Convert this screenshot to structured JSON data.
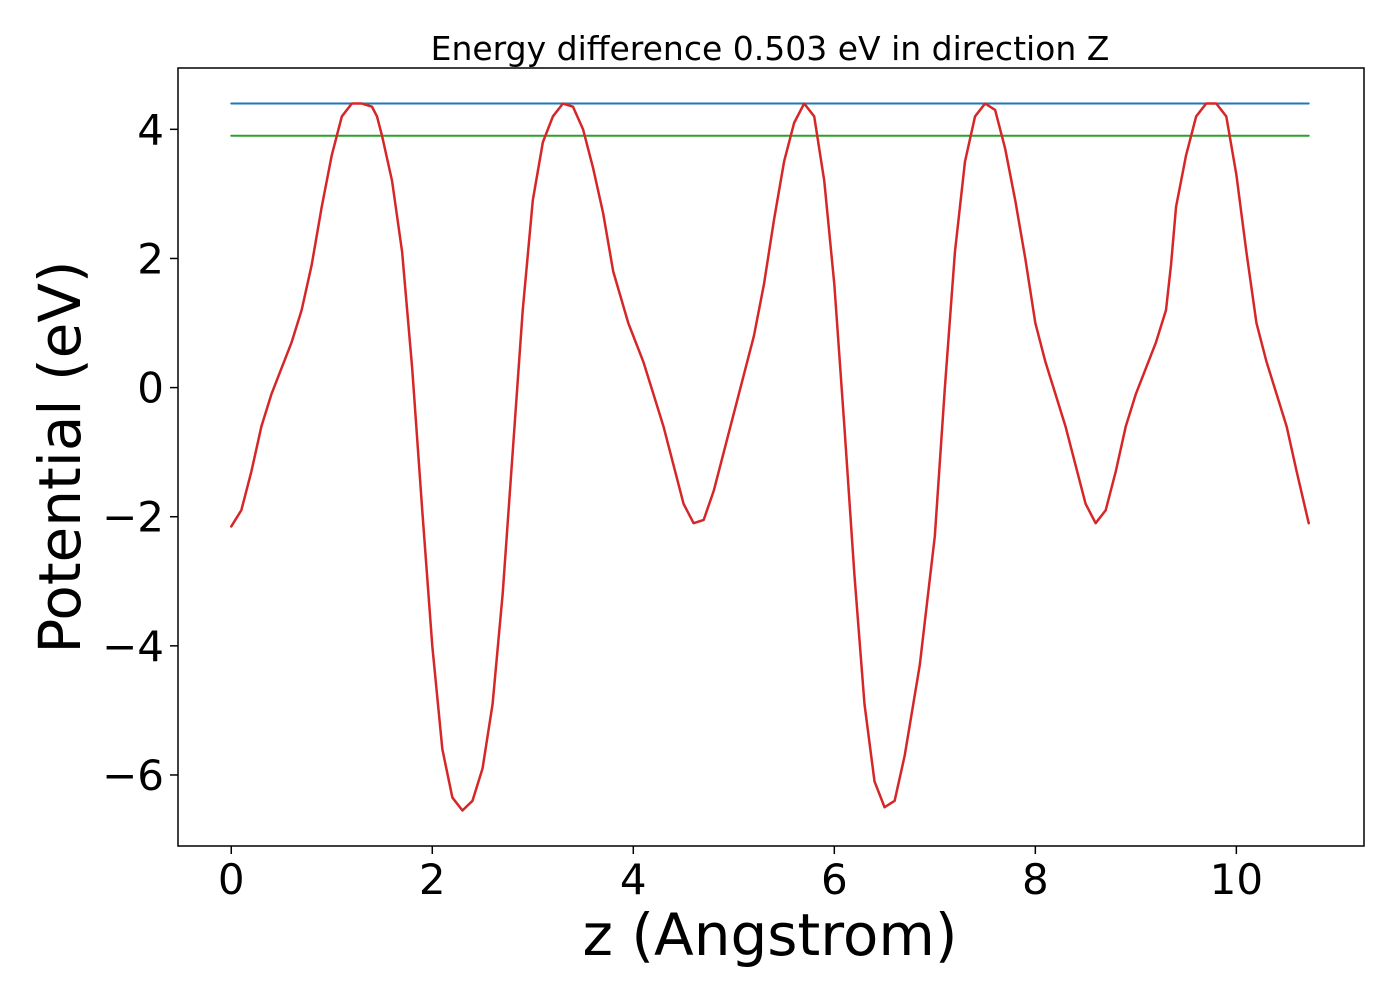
{
  "chart_data": {
    "type": "line",
    "title": "Energy difference 0.503 eV in direction Z",
    "xlabel": "z (Angstrom)",
    "ylabel": "Potential (eV)",
    "xlim": [
      -0.53,
      11.27
    ],
    "ylim": [
      -7.1,
      4.95
    ],
    "xticks": [
      0,
      2,
      4,
      6,
      8,
      10
    ],
    "xtick_labels": [
      "0",
      "2",
      "4",
      "6",
      "8",
      "10"
    ],
    "yticks": [
      -6,
      -4,
      -2,
      0,
      2,
      4
    ],
    "ytick_labels": [
      "−6",
      "−4",
      "−2",
      "0",
      "2",
      "4"
    ],
    "grid": false,
    "legend": "none",
    "series": [
      {
        "color": "#1f77b4",
        "x": [
          0,
          10.72
        ],
        "y": [
          4.4,
          4.4
        ]
      },
      {
        "color": "#2ca02c",
        "x": [
          0,
          10.72
        ],
        "y": [
          3.9,
          3.9
        ]
      },
      {
        "color": "#d62728",
        "x": [
          0,
          0.1,
          0.2,
          0.3,
          0.4,
          0.5,
          0.6,
          0.7,
          0.8,
          0.9,
          1.0,
          1.1,
          1.2,
          1.3,
          1.4,
          1.45,
          1.5,
          1.6,
          1.7,
          1.8,
          1.9,
          2.0,
          2.1,
          2.2,
          2.3,
          2.4,
          2.5,
          2.6,
          2.7,
          2.8,
          2.9,
          3.0,
          3.1,
          3.2,
          3.3,
          3.4,
          3.5,
          3.6,
          3.7,
          3.8,
          3.95,
          4.1,
          4.2,
          4.3,
          4.4,
          4.5,
          4.6,
          4.7,
          4.8,
          4.9,
          5.0,
          5.1,
          5.2,
          5.3,
          5.4,
          5.5,
          5.6,
          5.7,
          5.8,
          5.9,
          6.0,
          6.1,
          6.2,
          6.3,
          6.4,
          6.5,
          6.6,
          6.7,
          6.85,
          7.0,
          7.1,
          7.2,
          7.3,
          7.4,
          7.5,
          7.6,
          7.7,
          7.8,
          7.9,
          8.0,
          8.1,
          8.2,
          8.3,
          8.4,
          8.5,
          8.6,
          8.7,
          8.8,
          8.9,
          9.0,
          9.1,
          9.2,
          9.3,
          9.35,
          9.4,
          9.5,
          9.6,
          9.7,
          9.8,
          9.9,
          10.0,
          10.1,
          10.2,
          10.3,
          10.4,
          10.5,
          10.6,
          10.72
        ],
        "y": [
          -2.15,
          -1.9,
          -1.3,
          -0.6,
          -0.1,
          0.3,
          0.7,
          1.2,
          1.9,
          2.8,
          3.6,
          4.2,
          4.4,
          4.4,
          4.35,
          4.2,
          3.9,
          3.2,
          2.1,
          0.3,
          -1.9,
          -4.0,
          -5.6,
          -6.35,
          -6.55,
          -6.4,
          -5.9,
          -4.9,
          -3.2,
          -1.0,
          1.2,
          2.9,
          3.8,
          4.2,
          4.4,
          4.35,
          4.0,
          3.4,
          2.7,
          1.8,
          1.0,
          0.4,
          -0.1,
          -0.6,
          -1.2,
          -1.8,
          -2.1,
          -2.05,
          -1.6,
          -1.0,
          -0.4,
          0.2,
          0.8,
          1.6,
          2.6,
          3.5,
          4.1,
          4.4,
          4.2,
          3.2,
          1.6,
          -0.6,
          -2.9,
          -4.9,
          -6.1,
          -6.5,
          -6.4,
          -5.7,
          -4.3,
          -2.3,
          0.0,
          2.1,
          3.5,
          4.2,
          4.4,
          4.3,
          3.7,
          2.9,
          2.0,
          1.0,
          0.4,
          -0.1,
          -0.6,
          -1.2,
          -1.8,
          -2.1,
          -1.9,
          -1.3,
          -0.6,
          -0.1,
          0.3,
          0.7,
          1.2,
          1.9,
          2.8,
          3.6,
          4.2,
          4.4,
          4.4,
          4.2,
          3.3,
          2.1,
          1.0,
          0.4,
          -0.1,
          -0.6,
          -1.3,
          -2.1
        ]
      }
    ]
  }
}
